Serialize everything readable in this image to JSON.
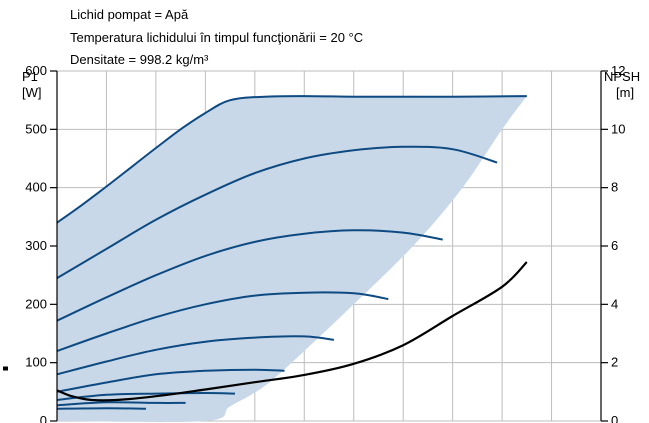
{
  "chart_data": {
    "type": "line",
    "annotations": [
      "Lichid pompat = Apă",
      "Temperatura lichidului în timpul funcţionării = 20  °C",
      "Densitate = 998.2  kg/m³"
    ],
    "y_left": {
      "label_lines": [
        "P1",
        "[W]"
      ],
      "range": [
        0,
        600
      ],
      "ticks": [
        0,
        100,
        200,
        300,
        400,
        500,
        600
      ]
    },
    "y_right": {
      "label_lines": [
        "NPSH",
        "[m]"
      ],
      "range": [
        0,
        12
      ],
      "ticks": [
        0,
        2,
        4,
        6,
        8,
        10,
        12
      ]
    },
    "x": {
      "range": [
        0,
        11
      ],
      "grid_count": 11,
      "tick_labels": false
    },
    "grid": true,
    "colors": {
      "power_curves": "#0d4a82",
      "envelope_fill": "#c9d8e8",
      "npsh_curve": "#000000",
      "grid": "#bdbdbd"
    },
    "envelope": {
      "upper": [
        [
          0,
          340
        ],
        [
          0.5,
          370
        ],
        [
          1,
          402
        ],
        [
          1.5,
          435
        ],
        [
          2,
          468
        ],
        [
          2.5,
          500
        ],
        [
          3,
          528
        ],
        [
          3.5,
          550
        ],
        [
          4.5,
          557
        ],
        [
          9.5,
          557
        ]
      ],
      "lower": [
        [
          9.5,
          557
        ],
        [
          9.0,
          500
        ],
        [
          8.2,
          400
        ],
        [
          7.2,
          300
        ],
        [
          6.0,
          200
        ],
        [
          5.0,
          120
        ],
        [
          4.2,
          60
        ],
        [
          3.5,
          25
        ],
        [
          3.0,
          0
        ],
        [
          0,
          0
        ]
      ]
    },
    "series": [
      {
        "values": [
          [
            0,
            340
          ],
          [
            0.5,
            370
          ],
          [
            1,
            402
          ],
          [
            1.5,
            435
          ],
          [
            2,
            468
          ],
          [
            2.5,
            500
          ],
          [
            3,
            528
          ],
          [
            3.5,
            550
          ],
          [
            4.2,
            556
          ],
          [
            5,
            557
          ],
          [
            6,
            556
          ],
          [
            7,
            556
          ],
          [
            8,
            556
          ],
          [
            9.5,
            557
          ]
        ]
      },
      {
        "values": [
          [
            0,
            245
          ],
          [
            1,
            295
          ],
          [
            2,
            345
          ],
          [
            3,
            388
          ],
          [
            4,
            425
          ],
          [
            5,
            450
          ],
          [
            6,
            464
          ],
          [
            7,
            470
          ],
          [
            8,
            466
          ],
          [
            8.9,
            443
          ]
        ]
      },
      {
        "values": [
          [
            0,
            172
          ],
          [
            1,
            212
          ],
          [
            2,
            250
          ],
          [
            3,
            283
          ],
          [
            4,
            307
          ],
          [
            5,
            321
          ],
          [
            6,
            327
          ],
          [
            7,
            323
          ],
          [
            7.8,
            311
          ]
        ]
      },
      {
        "values": [
          [
            0,
            120
          ],
          [
            1,
            150
          ],
          [
            2,
            178
          ],
          [
            3,
            200
          ],
          [
            4,
            215
          ],
          [
            5,
            220
          ],
          [
            6,
            219
          ],
          [
            6.7,
            209
          ]
        ]
      },
      {
        "values": [
          [
            0,
            80
          ],
          [
            1,
            102
          ],
          [
            2,
            122
          ],
          [
            3,
            136
          ],
          [
            4,
            143
          ],
          [
            5,
            145
          ],
          [
            5.6,
            139
          ]
        ]
      },
      {
        "values": [
          [
            0,
            50
          ],
          [
            1,
            66
          ],
          [
            2,
            80
          ],
          [
            3,
            86
          ],
          [
            4,
            88
          ],
          [
            4.6,
            86
          ]
        ]
      },
      {
        "values": [
          [
            0,
            36
          ],
          [
            1,
            45
          ],
          [
            2,
            47
          ],
          [
            3,
            48
          ],
          [
            3.6,
            47
          ]
        ]
      },
      {
        "values": [
          [
            0,
            27
          ],
          [
            1,
            32
          ],
          [
            2,
            31
          ],
          [
            2.6,
            31
          ]
        ]
      },
      {
        "values": [
          [
            0,
            21
          ],
          [
            1,
            22
          ],
          [
            1.8,
            21
          ]
        ]
      }
    ],
    "npsh": {
      "axis": "right",
      "values": [
        [
          0,
          1.05
        ],
        [
          0.3,
          0.85
        ],
        [
          0.7,
          0.72
        ],
        [
          1.2,
          0.72
        ],
        [
          2,
          0.85
        ],
        [
          3,
          1.08
        ],
        [
          4,
          1.33
        ],
        [
          5,
          1.58
        ],
        [
          6,
          1.96
        ],
        [
          7,
          2.6
        ],
        [
          8,
          3.6
        ],
        [
          9,
          4.6
        ],
        [
          9.5,
          5.45
        ]
      ]
    },
    "left_marker": {
      "axis": "left",
      "y": 90
    }
  }
}
